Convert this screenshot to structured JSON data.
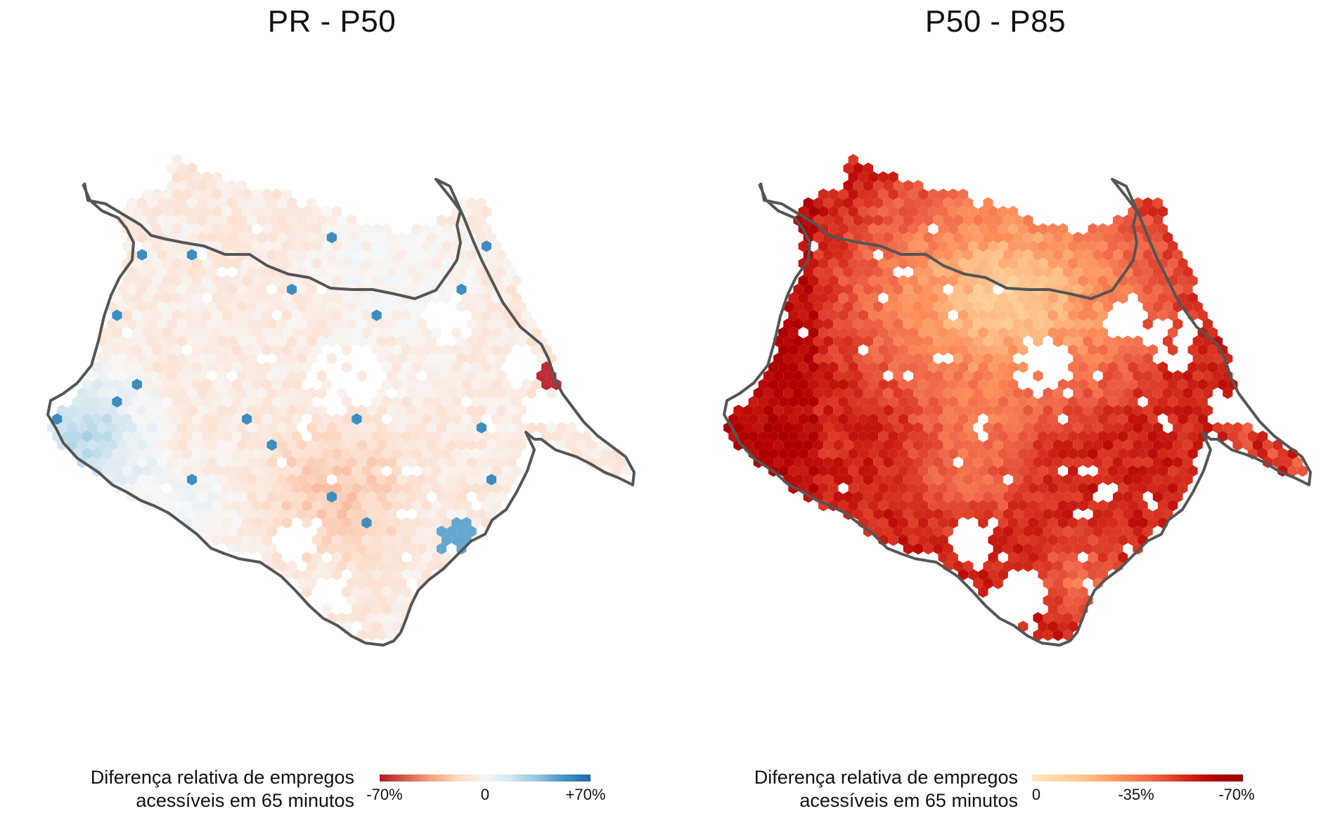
{
  "panels": [
    {
      "id": "left",
      "title": "PR - P50",
      "legend": {
        "title_line1": "Diferença relativa de empregos",
        "title_line2": "acessíveis em 65 minutos",
        "ticks": [
          "-70%",
          "0",
          "+70%"
        ],
        "colors": [
          "#b2182b",
          "#d6604d",
          "#f4a582",
          "#fddbc7",
          "#f7f7f7",
          "#d1e5f0",
          "#92c5de",
          "#4393c3",
          "#2166ac"
        ]
      }
    },
    {
      "id": "right",
      "title": "P50 - P85",
      "legend": {
        "title_line1": "Diferença relativa de empregos",
        "title_line2": "acessíveis em 65 minutos",
        "ticks": [
          "0",
          "-35%",
          "-70%"
        ],
        "colors": [
          "#fee8c8",
          "#fdd49e",
          "#fdbb84",
          "#fc8d59",
          "#ef6548",
          "#d7301f",
          "#b30000",
          "#990000"
        ]
      }
    }
  ],
  "boundary_color": "#555555"
}
